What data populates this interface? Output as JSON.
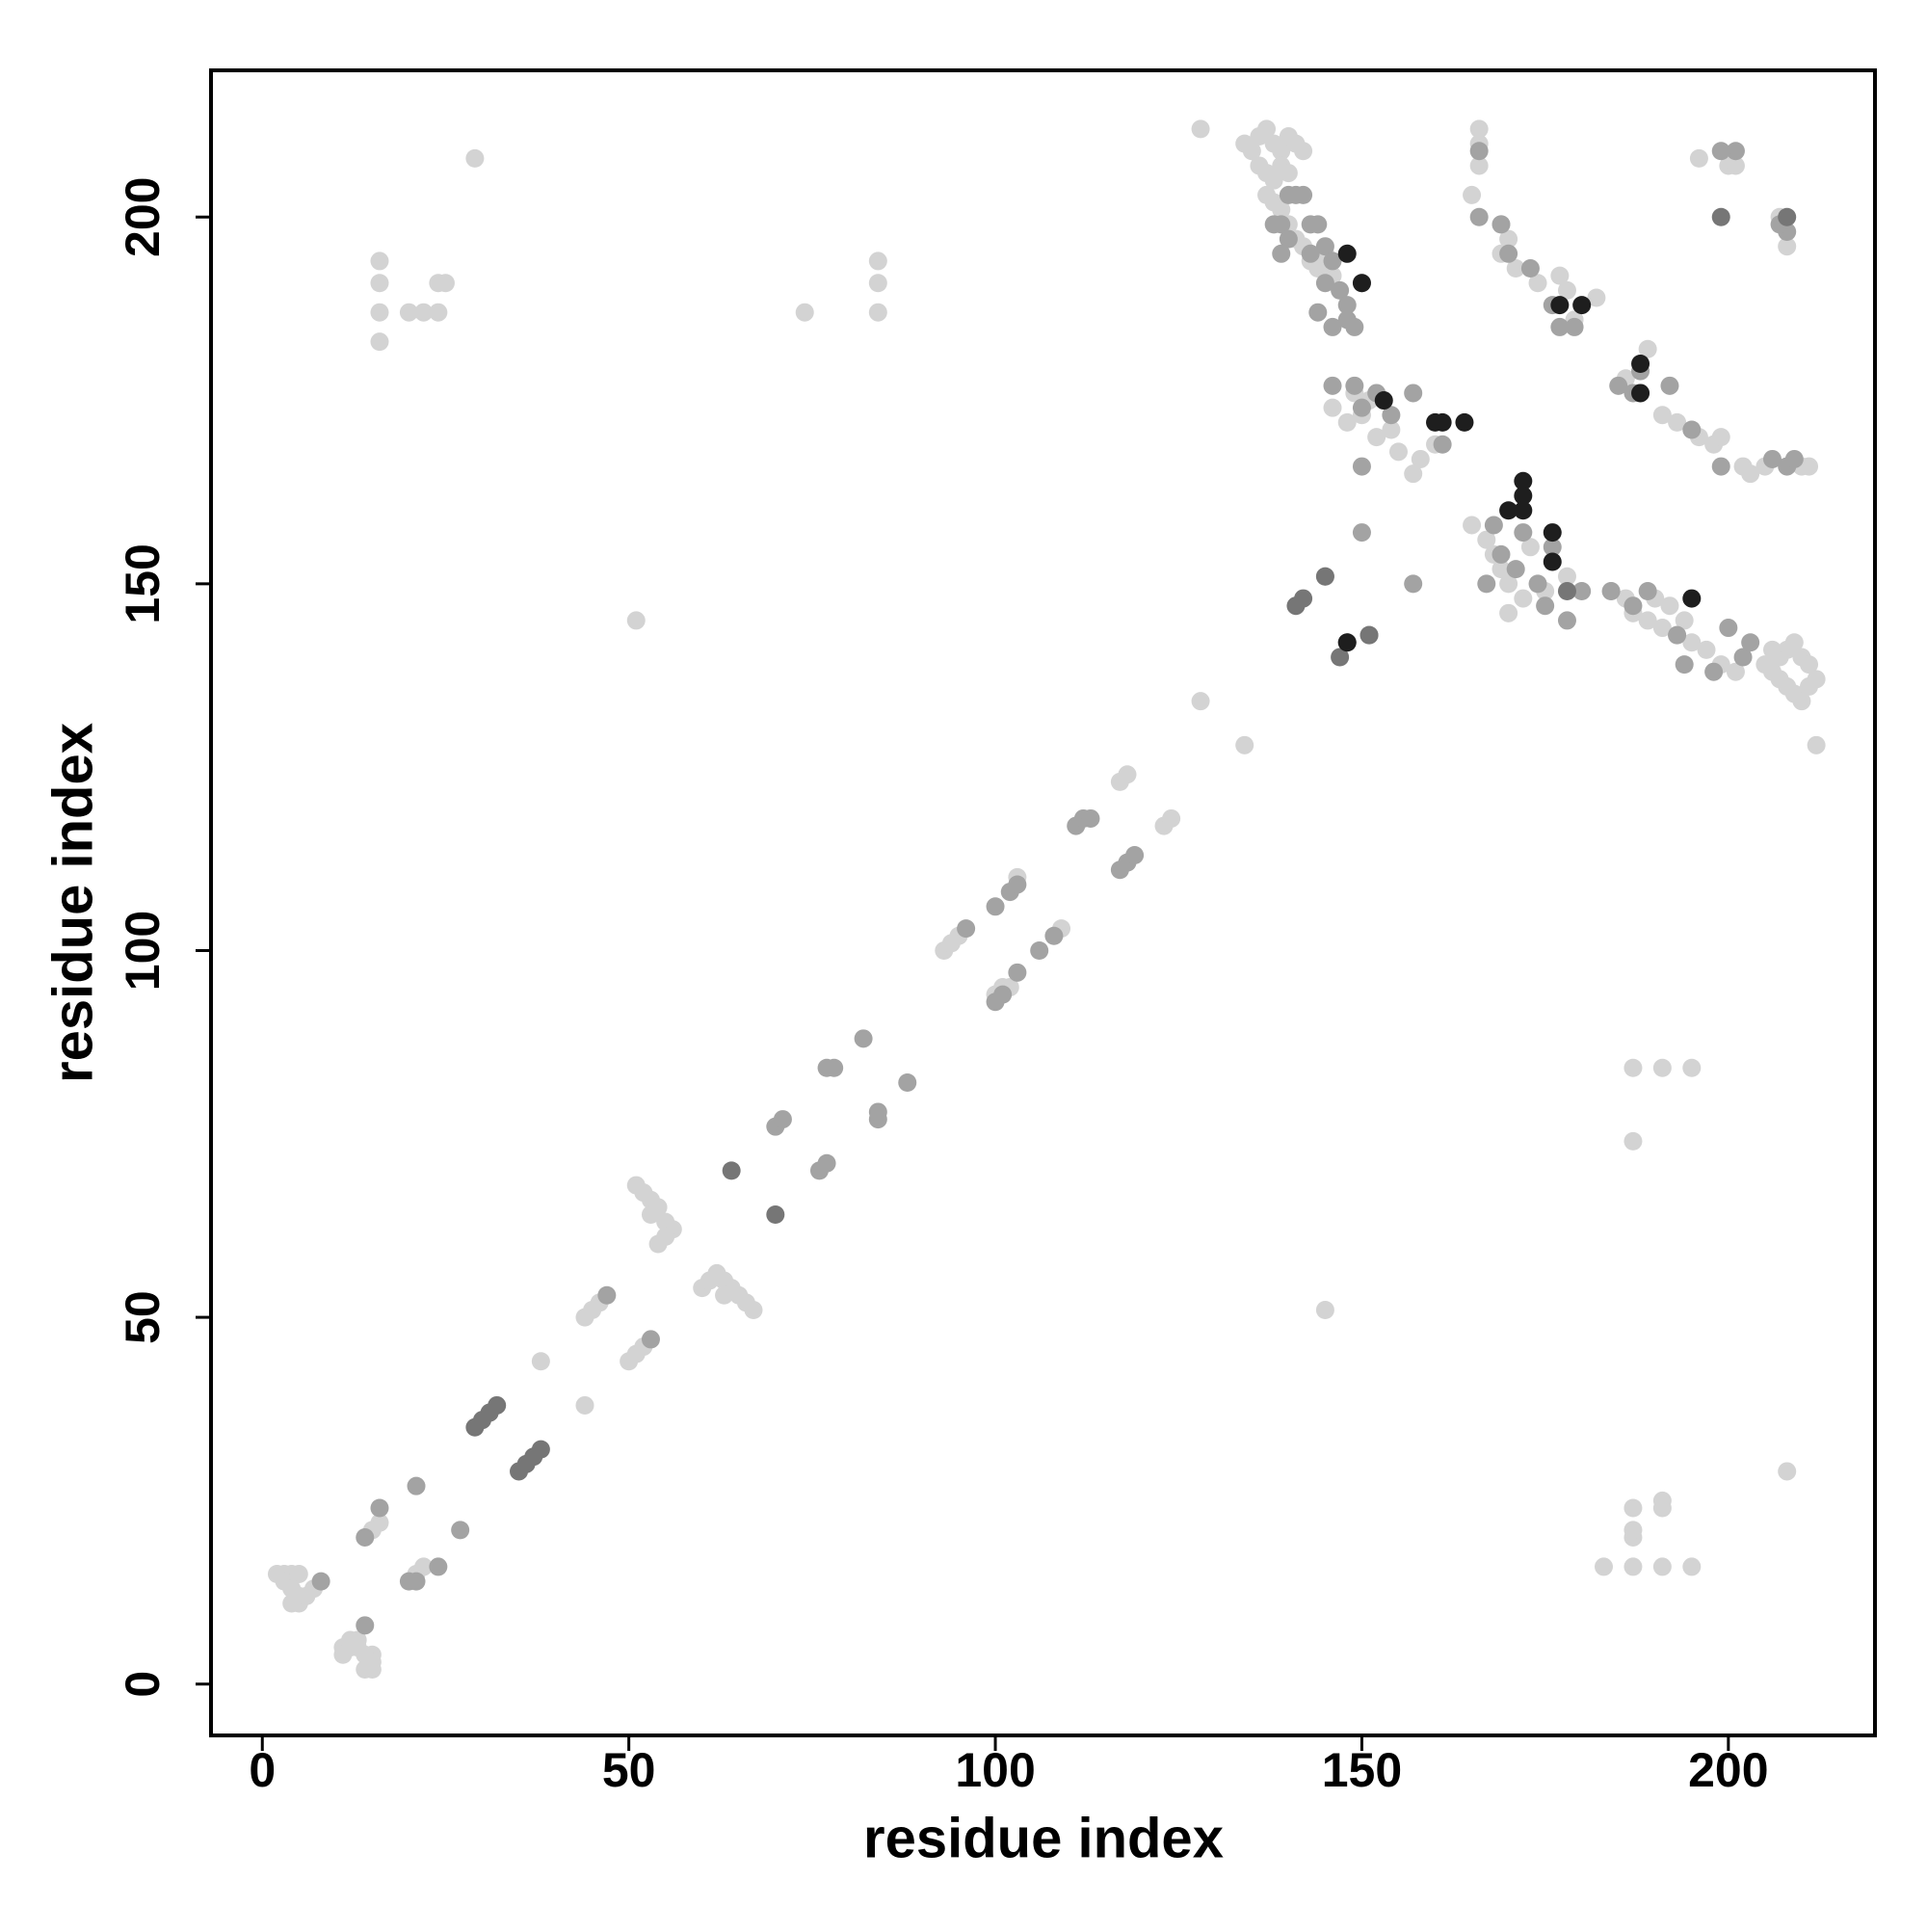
{
  "chart_data": {
    "type": "scatter",
    "xlabel": "residue index",
    "ylabel": "residue index",
    "xlim": [
      -7,
      220
    ],
    "ylim": [
      -7,
      220
    ],
    "xticks": [
      0,
      50,
      100,
      150,
      200
    ],
    "yticks": [
      0,
      50,
      100,
      150,
      200
    ],
    "series": [
      {
        "color": "#d3d3d3",
        "x": [
          2,
          3,
          4,
          5,
          3,
          4,
          5,
          5,
          6,
          7,
          4,
          11,
          12,
          13,
          14,
          15,
          15,
          15,
          14,
          11,
          12,
          13,
          16,
          15,
          21,
          22,
          16,
          16,
          16,
          16,
          20,
          22,
          24,
          25,
          24,
          29,
          38,
          44,
          44,
          45,
          46,
          50,
          51,
          52,
          51,
          51,
          52,
          53,
          54,
          55,
          56,
          53,
          54,
          55,
          60,
          61,
          62,
          63,
          64,
          65,
          66,
          67,
          63,
          74,
          84,
          84,
          84,
          93,
          94,
          95,
          100,
          101,
          102,
          103,
          109,
          117,
          118,
          123,
          124,
          128,
          128,
          134,
          134,
          135,
          136,
          137,
          138,
          139,
          140,
          141,
          142,
          136,
          137,
          138,
          139,
          140,
          137,
          138,
          139,
          140,
          141,
          142,
          143,
          144,
          145,
          146,
          205,
          206,
          207,
          208,
          209,
          210,
          211,
          212,
          208,
          209,
          210,
          207,
          211,
          206,
          212,
          145,
          183,
          187,
          191,
          195,
          187,
          187,
          187,
          191,
          191,
          208,
          187,
          187,
          191,
          195,
          166,
          166,
          166,
          165,
          169,
          170,
          169,
          171,
          174,
          177,
          178,
          179,
          182,
          186,
          188,
          189,
          191,
          193,
          196,
          198,
          199,
          202,
          203,
          205,
          210,
          211,
          196,
          200,
          201,
          207,
          208,
          165,
          167,
          168,
          169,
          170,
          172,
          170,
          173,
          175,
          176,
          178,
          184,
          186,
          187,
          189,
          191,
          193,
          195,
          197,
          199,
          201,
          190,
          192,
          194,
          148,
          150,
          152,
          154,
          155,
          157,
          158,
          160,
          146,
          149,
          151
        ],
        "values": [
          15,
          15,
          15,
          15,
          14,
          13,
          12,
          11,
          12,
          13,
          11,
          5,
          5,
          5,
          4,
          4,
          3,
          2,
          2,
          4,
          6,
          6,
          22,
          21,
          15,
          16,
          194,
          191,
          187,
          183,
          187,
          187,
          191,
          191,
          187,
          208,
          44,
          38,
          50,
          51,
          52,
          44,
          45,
          46,
          145,
          68,
          67,
          66,
          65,
          63,
          62,
          64,
          60,
          61,
          54,
          55,
          56,
          55,
          54,
          53,
          52,
          51,
          53,
          187,
          194,
          191,
          187,
          100,
          101,
          102,
          94,
          95,
          95,
          110,
          103,
          123,
          124,
          117,
          118,
          212,
          134,
          128,
          210,
          209,
          211,
          212,
          210,
          209,
          211,
          210,
          209,
          207,
          206,
          205,
          207,
          206,
          203,
          202,
          201,
          199,
          197,
          196,
          194,
          193,
          195,
          192,
          139,
          138,
          137,
          136,
          135,
          140,
          139,
          137,
          141,
          142,
          134,
          140,
          136,
          141,
          128,
          51,
          16,
          16,
          16,
          16,
          20,
          21,
          24,
          24,
          25,
          29,
          74,
          84,
          84,
          84,
          212,
          210,
          207,
          203,
          199,
          197,
          195,
          193,
          191,
          192,
          190,
          186,
          189,
          178,
          176,
          182,
          173,
          172,
          170,
          169,
          170,
          166,
          165,
          166,
          166,
          166,
          208,
          207,
          207,
          200,
          196,
          158,
          156,
          154,
          152,
          150,
          148,
          146,
          155,
          149,
          153,
          151,
          149,
          148,
          146,
          145,
          144,
          143,
          142,
          141,
          139,
          138,
          148,
          147,
          145,
          172,
          173,
          170,
          171,
          168,
          165,
          167,
          169,
          174,
          176,
          175
        ]
      },
      {
        "color": "#a3a3a3",
        "x": [
          8,
          14,
          14,
          16,
          21,
          20,
          21,
          24,
          27,
          47,
          53,
          70,
          71,
          76,
          77,
          77,
          78,
          82,
          84,
          84,
          88,
          96,
          100,
          102,
          103,
          100,
          101,
          103,
          106,
          108,
          111,
          112,
          113,
          117,
          118,
          119,
          140,
          141,
          142,
          138,
          139,
          140,
          139,
          143,
          144,
          145,
          146,
          147,
          148,
          148,
          149,
          145,
          144,
          146,
          150,
          143,
          146,
          149,
          150,
          152,
          154,
          157,
          161,
          150,
          150,
          157,
          151,
          145,
          166,
          166,
          169,
          170,
          173,
          176,
          177,
          179,
          185,
          187,
          188,
          192,
          195,
          199,
          206,
          208,
          209,
          201,
          199,
          208,
          207,
          167,
          169,
          171,
          174,
          175,
          178,
          180,
          184,
          187,
          189,
          193,
          194,
          198,
          200,
          202,
          203,
          168,
          172,
          176
        ],
        "values": [
          14,
          8,
          20,
          24,
          27,
          14,
          14,
          16,
          21,
          53,
          47,
          76,
          77,
          70,
          71,
          84,
          84,
          88,
          77,
          78,
          82,
          103,
          106,
          108,
          109,
          93,
          94,
          97,
          100,
          102,
          117,
          118,
          118,
          111,
          112,
          113,
          203,
          203,
          203,
          199,
          199,
          197,
          195,
          199,
          199,
          196,
          194,
          190,
          186,
          188,
          185,
          191,
          187,
          185,
          191,
          195,
          177,
          177,
          174,
          176,
          173,
          176,
          169,
          166,
          157,
          150,
          143,
          151,
          200,
          209,
          199,
          195,
          193,
          188,
          185,
          185,
          177,
          176,
          179,
          177,
          171,
          166,
          167,
          166,
          167,
          209,
          209,
          198,
          199,
          150,
          154,
          152,
          150,
          147,
          145,
          149,
          149,
          147,
          149,
          143,
          139,
          138,
          144,
          140,
          142,
          158,
          157,
          155
        ]
      },
      {
        "color": "#767676",
        "x": [
          29,
          30,
          31,
          32,
          35,
          36,
          37,
          38,
          64,
          70,
          141,
          142,
          147,
          148,
          151,
          145,
          178,
          199,
          208
        ],
        "values": [
          35,
          36,
          37,
          38,
          29,
          30,
          31,
          32,
          70,
          64,
          147,
          148,
          140,
          142,
          143,
          151,
          149,
          200,
          200
        ]
      },
      {
        "color": "#1e1e1e",
        "x": [
          148,
          153,
          160,
          161,
          164,
          172,
          172,
          172,
          177,
          180,
          188,
          188,
          195,
          176,
          176,
          170,
          150,
          148
        ],
        "values": [
          195,
          175,
          172,
          172,
          172,
          164,
          162,
          160,
          188,
          188,
          180,
          176,
          148,
          153,
          157,
          160,
          191,
          142
        ]
      }
    ]
  }
}
